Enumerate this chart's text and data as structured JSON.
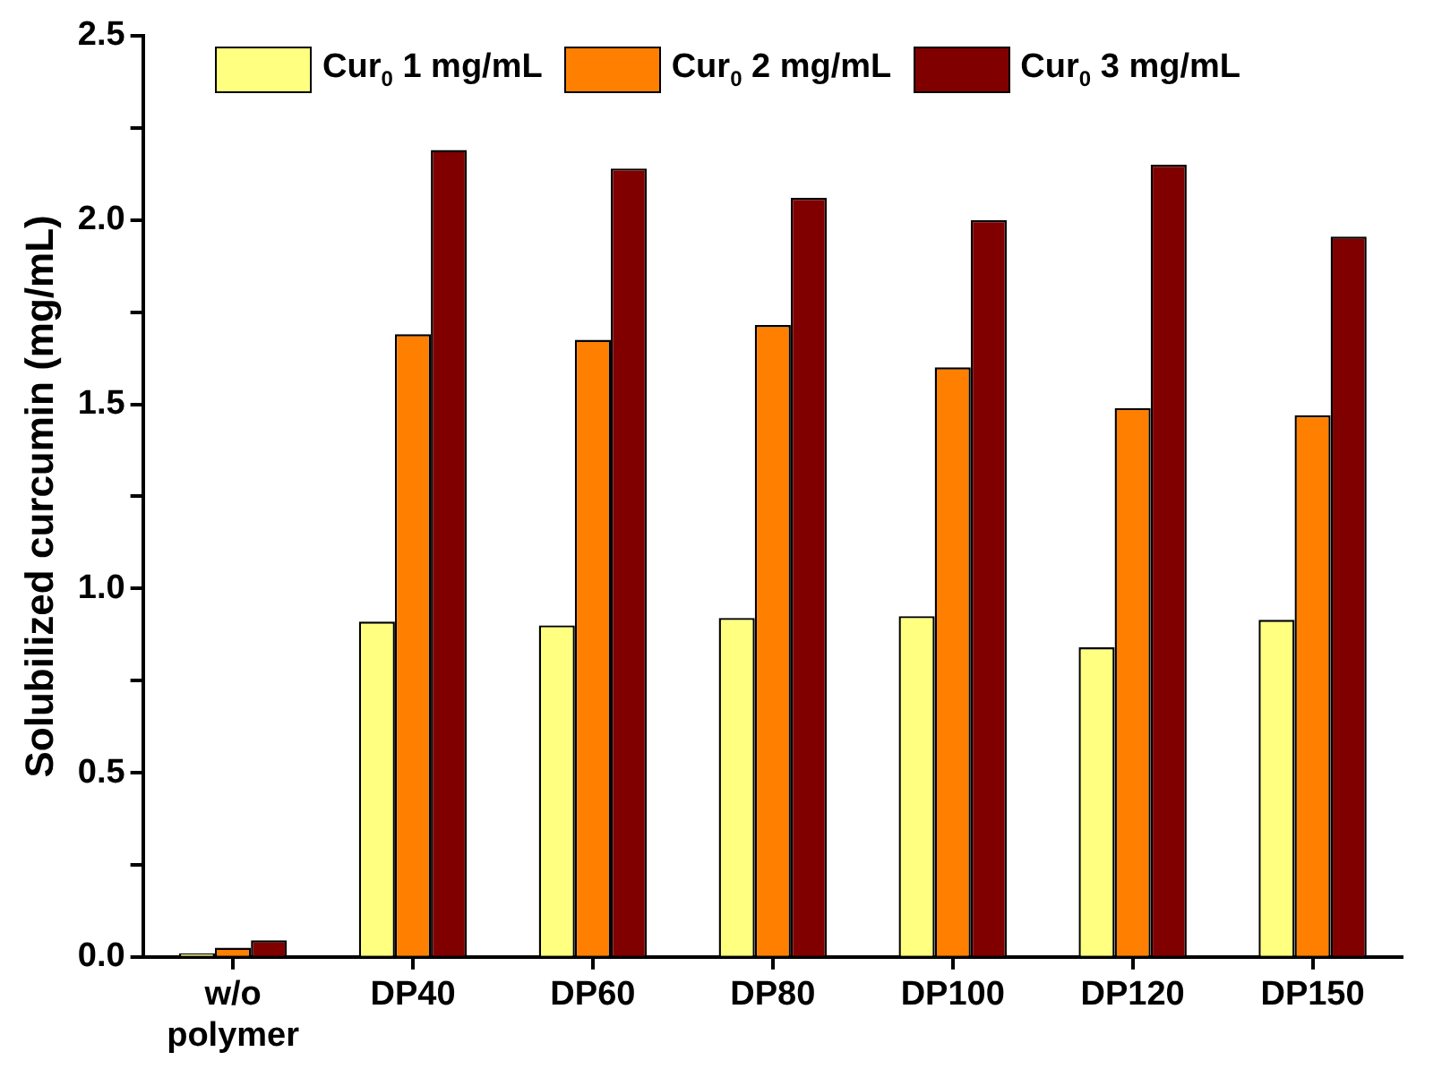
{
  "chart_data": {
    "type": "bar",
    "ylabel": "Solubilized curcumin (mg/mL)",
    "categories": [
      "w/o polymer",
      "DP40",
      "DP60",
      "DP80",
      "DP100",
      "DP120",
      "DP150"
    ],
    "series": [
      {
        "name": "Cur$_{0}$ 1 mg/mL",
        "color": "#ffff80",
        "values": [
          0.01,
          0.91,
          0.9,
          0.92,
          0.925,
          0.84,
          0.915
        ]
      },
      {
        "name": "Cur$_{0}$ 2 mg/mL",
        "color": "#ff8000",
        "values": [
          0.025,
          1.69,
          1.675,
          1.715,
          1.6,
          1.49,
          1.47
        ]
      },
      {
        "name": "Cur$_{0}$ 3 mg/mL",
        "color": "#800000",
        "values": [
          0.045,
          2.19,
          2.14,
          2.06,
          2.0,
          2.15,
          1.955
        ]
      }
    ],
    "ylim": [
      0,
      2.5
    ],
    "yticks": [
      {
        "value": 0,
        "label": "0.0"
      },
      {
        "value": 0.25,
        "label": null
      },
      {
        "value": 0.5,
        "label": "0.5"
      },
      {
        "value": 0.75,
        "label": null
      },
      {
        "value": 1,
        "label": "1.0"
      },
      {
        "value": 1.25,
        "label": null
      },
      {
        "value": 1.5,
        "label": "1.5"
      },
      {
        "value": 1.75,
        "label": null
      },
      {
        "value": 2,
        "label": "2.0"
      },
      {
        "value": 2.25,
        "label": null
      },
      {
        "value": 2.5,
        "label": "2.5"
      }
    ],
    "grid": false,
    "legend": "top"
  }
}
